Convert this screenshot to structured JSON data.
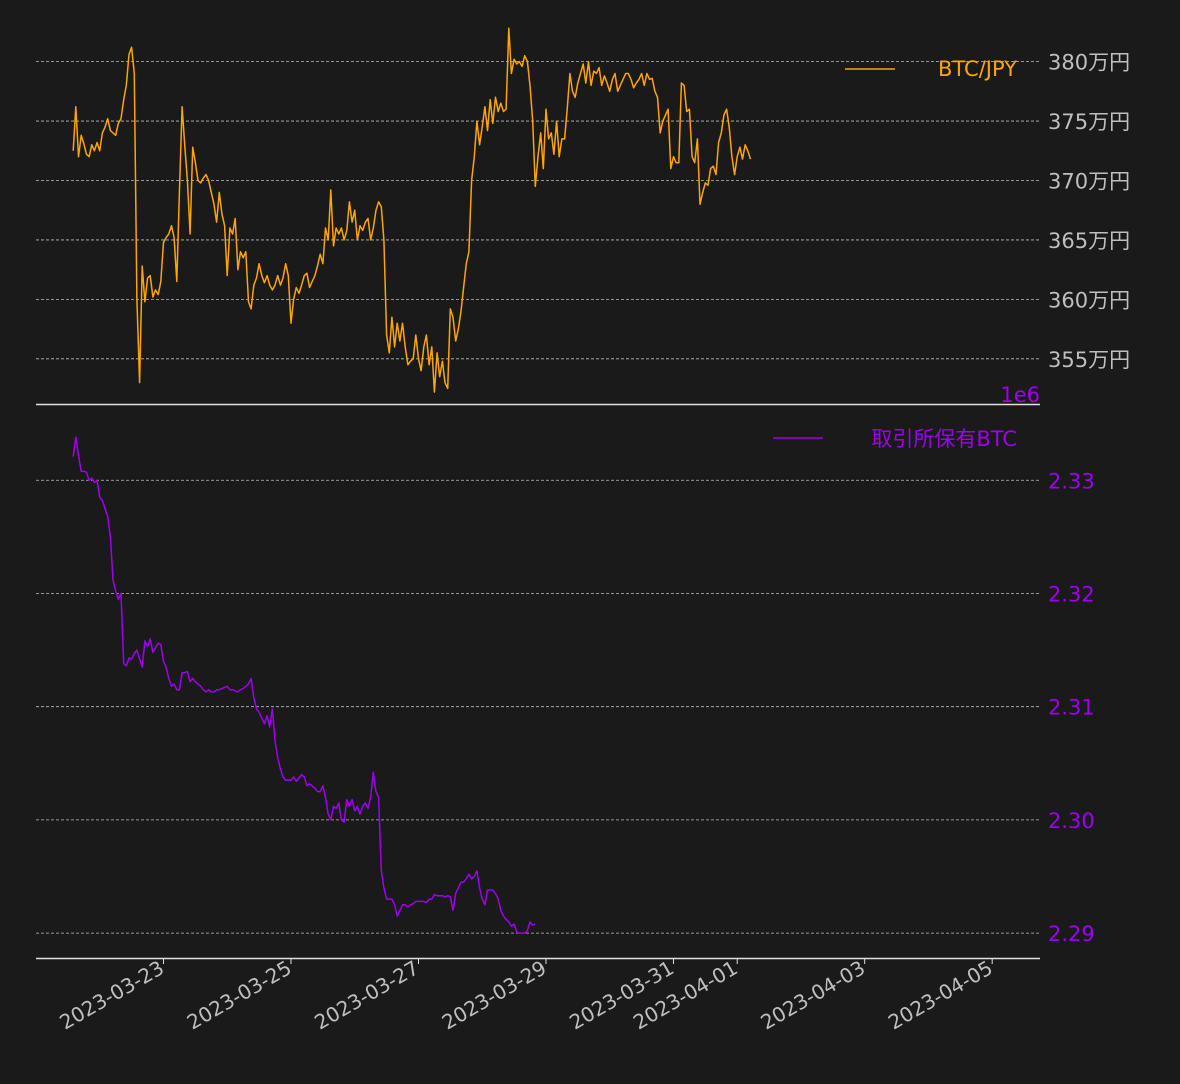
{
  "chart_data": [
    {
      "type": "line",
      "series": [
        {
          "name": "BTC/JPY",
          "color": "#ffa500"
        }
      ],
      "ylim": [
        3512000,
        3835000
      ],
      "yticks": [
        3550000,
        3600000,
        3650000,
        3700000,
        3750000,
        3800000
      ],
      "ytick_labels": [
        "355万円",
        "360万円",
        "365万円",
        "370万円",
        "375万円",
        "380万円"
      ],
      "grid": true,
      "legend": "top-right",
      "x_start": "2023-03-21T14:00",
      "x_step_hours": 1,
      "values": [
        3725000,
        3762000,
        3720000,
        3738000,
        3731000,
        3722000,
        3720000,
        3730000,
        3725000,
        3732000,
        3725000,
        3740000,
        3745000,
        3752000,
        3742000,
        3740000,
        3738000,
        3748000,
        3752000,
        3768000,
        3780000,
        3806000,
        3812000,
        3790000,
        3600000,
        3530000,
        3628000,
        3598000,
        3618000,
        3620000,
        3602000,
        3608000,
        3604000,
        3615000,
        3648000,
        3652000,
        3655000,
        3662000,
        3652000,
        3615000,
        3690000,
        3762000,
        3730000,
        3700000,
        3655000,
        3728000,
        3715000,
        3700000,
        3698000,
        3702000,
        3705000,
        3700000,
        3690000,
        3680000,
        3665000,
        3690000,
        3672000,
        3662000,
        3620000,
        3660000,
        3655000,
        3668000,
        3625000,
        3640000,
        3635000,
        3640000,
        3598000,
        3592000,
        3612000,
        3618000,
        3630000,
        3620000,
        3614000,
        3620000,
        3612000,
        3608000,
        3612000,
        3620000,
        3612000,
        3618000,
        3630000,
        3620000,
        3580000,
        3600000,
        3610000,
        3605000,
        3612000,
        3620000,
        3622000,
        3610000,
        3615000,
        3620000,
        3628000,
        3638000,
        3630000,
        3660000,
        3650000,
        3692000,
        3645000,
        3660000,
        3655000,
        3660000,
        3650000,
        3658000,
        3682000,
        3665000,
        3675000,
        3650000,
        3662000,
        3658000,
        3665000,
        3668000,
        3650000,
        3660000,
        3675000,
        3682000,
        3678000,
        3650000,
        3570000,
        3555000,
        3585000,
        3560000,
        3580000,
        3565000,
        3580000,
        3560000,
        3545000,
        3548000,
        3550000,
        3570000,
        3550000,
        3540000,
        3560000,
        3570000,
        3545000,
        3560000,
        3522000,
        3555000,
        3535000,
        3548000,
        3530000,
        3525000,
        3592000,
        3585000,
        3565000,
        3575000,
        3590000,
        3610000,
        3630000,
        3640000,
        3700000,
        3720000,
        3750000,
        3730000,
        3745000,
        3762000,
        3742000,
        3768000,
        3748000,
        3770000,
        3758000,
        3765000,
        3758000,
        3760000,
        3828000,
        3790000,
        3802000,
        3798000,
        3800000,
        3796000,
        3805000,
        3800000,
        3780000,
        3750000,
        3695000,
        3720000,
        3740000,
        3710000,
        3760000,
        3735000,
        3740000,
        3722000,
        3750000,
        3720000,
        3735000,
        3735000,
        3760000,
        3790000,
        3775000,
        3770000,
        3782000,
        3790000,
        3798000,
        3782000,
        3800000,
        3780000,
        3792000,
        3790000,
        3795000,
        3780000,
        3788000,
        3782000,
        3775000,
        3785000,
        3790000,
        3775000,
        3780000,
        3785000,
        3790000,
        3790000,
        3785000,
        3778000,
        3782000,
        3785000,
        3790000,
        3780000,
        3790000,
        3785000,
        3786000,
        3775000,
        3770000,
        3740000,
        3750000,
        3755000,
        3760000,
        3710000,
        3720000,
        3715000,
        3715000,
        3782000,
        3780000,
        3758000,
        3760000,
        3720000,
        3715000,
        3735000,
        3680000,
        3690000,
        3698000,
        3696000,
        3710000,
        3712000,
        3705000,
        3732000,
        3740000,
        3755000,
        3760000,
        3745000,
        3720000,
        3705000,
        3720000,
        3728000,
        3718000,
        3730000,
        3725000,
        3718000
      ]
    },
    {
      "type": "line",
      "series": [
        {
          "name": "取引所保有BTC",
          "color": "#a000f0"
        }
      ],
      "offset_label": "1e6",
      "ylim": [
        2.2878,
        2.3355
      ],
      "yticks": [
        2.29,
        2.3,
        2.31,
        2.32,
        2.33
      ],
      "ytick_labels": [
        "2.29",
        "2.30",
        "2.31",
        "2.32",
        "2.33"
      ],
      "grid": true,
      "legend": "top-right",
      "x_start": "2023-03-21T14:00",
      "x_step_hours": 1,
      "values": [
        2.3321,
        2.3338,
        2.3322,
        2.3308,
        2.3308,
        2.3307,
        2.33,
        2.3302,
        2.3298,
        2.33,
        2.3285,
        2.3282,
        2.3275,
        2.3268,
        2.325,
        2.3212,
        2.3202,
        2.3195,
        2.32,
        2.3138,
        2.3136,
        2.3143,
        2.3142,
        2.3147,
        2.315,
        2.3142,
        2.3135,
        2.3158,
        2.3153,
        2.316,
        2.3148,
        2.3152,
        2.3156,
        2.3155,
        2.314,
        2.3135,
        2.3125,
        2.3118,
        2.312,
        2.3115,
        2.3115,
        2.313,
        2.313,
        2.3131,
        2.3122,
        2.3125,
        2.3122,
        2.312,
        2.3118,
        2.3115,
        2.3113,
        2.3115,
        2.3113,
        2.3113,
        2.3115,
        2.3115,
        2.3116,
        2.3117,
        2.3118,
        2.3115,
        2.3115,
        2.3114,
        2.3113,
        2.3115,
        2.3116,
        2.3118,
        2.312,
        2.3125,
        2.3108,
        2.3098,
        2.3095,
        2.309,
        2.3085,
        2.3092,
        2.3082,
        2.3098,
        2.307,
        2.3055,
        2.3045,
        2.3038,
        2.3035,
        2.3035,
        2.3035,
        2.3038,
        2.3034,
        2.3037,
        2.304,
        2.3038,
        2.303,
        2.3032,
        2.303,
        2.3028,
        2.3025,
        2.3025,
        2.303,
        2.302,
        2.3005,
        2.3,
        2.3012,
        2.301,
        2.3015,
        2.3,
        2.2998,
        2.3018,
        2.3012,
        2.3018,
        2.3008,
        2.3012,
        2.3005,
        2.3012,
        2.3015,
        2.301,
        2.302,
        2.3042,
        2.3025,
        2.302,
        2.2955,
        2.294,
        2.293,
        2.293,
        2.293,
        2.2925,
        2.2915,
        2.292,
        2.2925,
        2.2925,
        2.2923,
        2.2925,
        2.2926,
        2.2928,
        2.2928,
        2.2928,
        2.2928,
        2.2927,
        2.293,
        2.293,
        2.2934,
        2.2933,
        2.2933,
        2.2933,
        2.2932,
        2.2933,
        2.2932,
        2.292,
        2.2935,
        2.294,
        2.2945,
        2.2945,
        2.2948,
        2.2952,
        2.2948,
        2.295,
        2.2955,
        2.294,
        2.293,
        2.2925,
        2.2938,
        2.2938,
        2.2938,
        2.2935,
        2.293,
        2.292,
        2.2915,
        2.2912,
        2.291,
        2.2906,
        2.2908,
        2.2901,
        2.29,
        2.29,
        2.29,
        2.2902,
        2.291,
        2.2907,
        2.2908
      ]
    }
  ],
  "x_axis": {
    "tick_labels": [
      "2023-03-23",
      "2023-03-25",
      "2023-03-27",
      "2023-03-29",
      "2023-03-31",
      "2023-04-01",
      "2023-04-03",
      "2023-04-05"
    ],
    "tick_dates": [
      "2023-03-23",
      "2023-03-25",
      "2023-03-27",
      "2023-03-29",
      "2023-03-31",
      "2023-04-01",
      "2023-04-03",
      "2023-04-05"
    ]
  }
}
